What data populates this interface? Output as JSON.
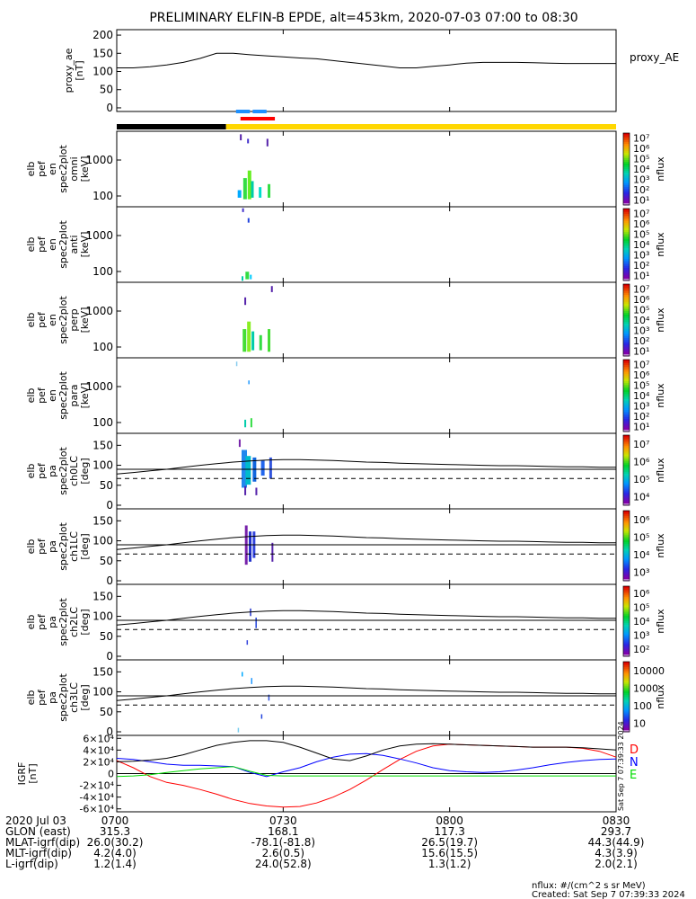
{
  "title": "PRELIMINARY ELFIN-B EPDE, alt=453km, 2020-07-03 07:00 to 08:30",
  "colors": {
    "fgm_D": "#ff0000",
    "fgm_N": "#0000ff",
    "fgm_E": "#00dd00",
    "fgm_mag": "#000000",
    "sunlight": "#ffd700",
    "shadow": "#000000",
    "science_zone": "#ff0000",
    "science_zone_blue": "#1e90ff"
  },
  "chart_data": [
    {
      "type": "line",
      "id": "proxy_ae",
      "ylabel_lines": [
        "proxy_ae",
        "[nT]"
      ],
      "legend": "proxy_AE",
      "ylim": [
        -10,
        215
      ],
      "yticks": [
        0,
        50,
        100,
        150,
        200
      ],
      "x_minutes": [
        0,
        3,
        6,
        9,
        12,
        15,
        18,
        21,
        24,
        27,
        30,
        33,
        36,
        39,
        42,
        45,
        48,
        51,
        54,
        57,
        60,
        63,
        66,
        69,
        72,
        75,
        78,
        81,
        84,
        87,
        90
      ],
      "values": [
        110,
        110,
        113,
        118,
        125,
        136,
        150,
        150,
        146,
        143,
        140,
        137,
        135,
        130,
        125,
        120,
        115,
        110,
        110,
        114,
        118,
        123,
        125,
        125,
        125,
        124,
        123,
        122,
        122,
        122,
        122
      ]
    },
    {
      "type": "heatmap",
      "id": "omni",
      "ylabel_lines": [
        "elb",
        "pef",
        "en",
        "spec2plot",
        "omni",
        "[keV]"
      ],
      "scale": "log",
      "yticks": [
        "100",
        "1000"
      ],
      "colorbar": {
        "label": "nflux",
        "ticks": [
          "10¹",
          "10²",
          "10³",
          "10⁴",
          "10⁵",
          "10⁶",
          "10⁷"
        ]
      }
    },
    {
      "type": "heatmap",
      "id": "anti",
      "ylabel_lines": [
        "elb",
        "pef",
        "en",
        "spec2plot",
        "anti",
        "[keV]"
      ],
      "scale": "log",
      "yticks": [
        "100",
        "1000"
      ],
      "colorbar": {
        "label": "nflux",
        "ticks": [
          "10¹",
          "10²",
          "10³",
          "10⁴",
          "10⁵",
          "10⁶",
          "10⁷"
        ]
      }
    },
    {
      "type": "heatmap",
      "id": "perp",
      "ylabel_lines": [
        "elb",
        "pef",
        "en",
        "spec2plot",
        "perp",
        "[keV]"
      ],
      "scale": "log",
      "yticks": [
        "100",
        "1000"
      ],
      "colorbar": {
        "label": "nflux",
        "ticks": [
          "10¹",
          "10²",
          "10³",
          "10⁴",
          "10⁵",
          "10⁶",
          "10⁷"
        ]
      }
    },
    {
      "type": "heatmap",
      "id": "para",
      "ylabel_lines": [
        "elb",
        "pef",
        "en",
        "spec2plot",
        "para",
        "[keV]"
      ],
      "scale": "log",
      "yticks": [
        "100",
        "1000"
      ],
      "colorbar": {
        "label": "nflux",
        "ticks": [
          "10¹",
          "10²",
          "10³",
          "10⁴",
          "10⁵",
          "10⁶",
          "10⁷"
        ]
      }
    },
    {
      "type": "heatmap",
      "id": "ch0LC",
      "ylabel_lines": [
        "elb",
        "pef",
        "pa",
        "spec2plot",
        "ch0LC",
        "[deg]"
      ],
      "ylim": [
        0,
        180
      ],
      "yticks": [
        0,
        50,
        100,
        150
      ],
      "colorbar": {
        "label": "nflux",
        "ticks": [
          "10⁴",
          "10⁵",
          "10⁶",
          "10⁷"
        ]
      }
    },
    {
      "type": "heatmap",
      "id": "ch1LC",
      "ylabel_lines": [
        "elb",
        "pef",
        "pa",
        "spec2plot",
        "ch1LC",
        "[deg]"
      ],
      "ylim": [
        0,
        180
      ],
      "yticks": [
        0,
        50,
        100,
        150
      ],
      "colorbar": {
        "label": "nflux",
        "ticks": [
          "10³",
          "10⁴",
          "10⁵",
          "10⁶"
        ]
      }
    },
    {
      "type": "heatmap",
      "id": "ch2LC",
      "ylabel_lines": [
        "elb",
        "pef",
        "pa",
        "spec2plot",
        "ch2LC",
        "[deg]"
      ],
      "ylim": [
        0,
        180
      ],
      "yticks": [
        0,
        50,
        100,
        150
      ],
      "colorbar": {
        "label": "nflux",
        "ticks": [
          "10²",
          "10³",
          "10⁴",
          "10⁵",
          "10⁶"
        ]
      }
    },
    {
      "type": "heatmap",
      "id": "ch3LC",
      "ylabel_lines": [
        "elb",
        "pef",
        "pa",
        "spec2plot",
        "ch3LC",
        "[deg]"
      ],
      "ylim": [
        0,
        180
      ],
      "yticks": [
        0,
        50,
        100,
        150
      ],
      "colorbar": {
        "label": "nflux",
        "ticks": [
          "10",
          "100",
          "1000",
          "10000"
        ]
      }
    },
    {
      "type": "line",
      "id": "fgm_igrf",
      "ylabel_lines": [
        "IGRF",
        "[nT]"
      ],
      "ylim": [
        -65000,
        65000
      ],
      "yticks": [
        "-6×10⁴",
        "-4×10⁴",
        "-2×10⁴",
        "0",
        "2×10⁴",
        "4×10⁴",
        "6×10⁴"
      ],
      "ytick_values": [
        -60000,
        -40000,
        -20000,
        0,
        20000,
        40000,
        60000
      ],
      "legend": [
        "D",
        "N",
        "E"
      ],
      "x_minutes": [
        0,
        3,
        6,
        9,
        12,
        15,
        18,
        21,
        24,
        27,
        30,
        33,
        36,
        39,
        42,
        45,
        48,
        51,
        54,
        57,
        60,
        63,
        66,
        69,
        72,
        75,
        78,
        81,
        84,
        87,
        90
      ],
      "series": [
        {
          "key": "D",
          "values": [
            22000,
            10000,
            -5000,
            -15000,
            -20000,
            -27000,
            -35000,
            -44000,
            -51000,
            -55000,
            -57000,
            -56000,
            -50000,
            -40000,
            -27000,
            -11000,
            7000,
            24000,
            38000,
            47000,
            50000,
            49000,
            48000,
            47000,
            46000,
            45000,
            45000,
            45000,
            43000,
            38000,
            28000
          ]
        },
        {
          "key": "N",
          "values": [
            26000,
            24000,
            20000,
            16000,
            14000,
            14000,
            13000,
            12000,
            2000,
            -5000,
            3000,
            10000,
            20000,
            28000,
            33000,
            34000,
            31000,
            25000,
            18000,
            10000,
            5000,
            3000,
            2000,
            3000,
            6000,
            10000,
            15000,
            19000,
            22000,
            24000,
            25000
          ]
        },
        {
          "key": "E",
          "values": [
            -5000,
            -4000,
            -2000,
            2000,
            5000,
            8000,
            10000,
            12000,
            4000,
            -3000,
            -4000,
            -4000,
            -4000,
            -4000,
            -4000,
            -4000,
            -4000,
            -4000,
            -4000,
            -4000,
            -4000,
            -4000,
            -4000,
            -4000,
            -4000,
            -4000,
            -4000,
            -4000,
            -4000,
            -4000,
            -4000
          ]
        },
        {
          "key": "mag",
          "values": [
            20000,
            21000,
            23000,
            26000,
            32000,
            40000,
            48000,
            53000,
            56000,
            56000,
            53000,
            45000,
            35000,
            25000,
            22000,
            30000,
            40000,
            47000,
            50000,
            51000,
            50000,
            49000,
            48000,
            47000,
            46000,
            45000,
            45000,
            45000,
            44000,
            42000,
            40000
          ]
        }
      ]
    }
  ],
  "orbit": {
    "rows": [
      {
        "label": "2020 Jul 03",
        "values": [
          "0700",
          "0730",
          "0800",
          "0830"
        ]
      },
      {
        "label": "GLON (east)",
        "values": [
          "315.3",
          "168.1",
          "117.3",
          "293.7"
        ]
      },
      {
        "label": "MLAT-igrf(dip)",
        "values": [
          "26.0(30.2)",
          "-78.1(-81.8)",
          "26.5(19.7)",
          "44.3(44.9)"
        ]
      },
      {
        "label": "MLT-igrf(dip)",
        "values": [
          "4.2(4.0)",
          "2.6(0.5)",
          "15.6(15.5)",
          "4.3(3.9)"
        ]
      },
      {
        "label": "L-igrf(dip)",
        "values": [
          "1.2(1.4)",
          "24.0(52.8)",
          "1.3(1.2)",
          "2.0(2.1)"
        ]
      }
    ],
    "tick_minutes": [
      0,
      30,
      60,
      90
    ]
  },
  "footer": {
    "units": "nflux: #/(cm^2 s sr MeV)",
    "created": "Created: Sat Sep  7 07:39:33 2024",
    "side_stamp": "Sat Sep  7 07:39:33 2024"
  }
}
